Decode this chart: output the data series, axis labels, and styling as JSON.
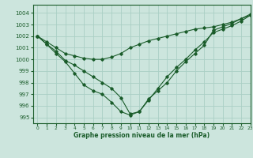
{
  "title": "Graphe pression niveau de la mer (hPa)",
  "xlabel": "Graphe pression niveau de la mer (hPa)",
  "xlim": [
    -0.5,
    23
  ],
  "ylim": [
    994.5,
    1004.7
  ],
  "yticks": [
    995,
    996,
    997,
    998,
    999,
    1000,
    1001,
    1002,
    1003,
    1004
  ],
  "xticks": [
    0,
    1,
    2,
    3,
    4,
    5,
    6,
    7,
    8,
    9,
    10,
    11,
    12,
    13,
    14,
    15,
    16,
    17,
    18,
    19,
    20,
    21,
    22,
    23
  ],
  "bg_color": "#cce5dd",
  "grid_color": "#aacfc5",
  "line_color": "#1a5c2a",
  "series1": [
    1002.0,
    1001.5,
    1001.0,
    1000.5,
    1000.3,
    1000.1,
    1000.0,
    1000.0,
    1000.2,
    1000.5,
    1001.0,
    1001.3,
    1001.6,
    1001.8,
    1002.0,
    1002.2,
    1002.4,
    1002.6,
    1002.7,
    1002.8,
    1003.0,
    1003.2,
    1003.5,
    1003.8
  ],
  "series2": [
    1002.0,
    1001.3,
    1000.5,
    999.8,
    998.8,
    997.8,
    997.3,
    997.0,
    996.3,
    995.5,
    995.2,
    995.5,
    996.6,
    997.3,
    998.0,
    999.0,
    999.8,
    1000.5,
    1001.2,
    1002.5,
    1002.8,
    1003.1,
    1003.5,
    1003.9
  ],
  "series3": [
    1002.0,
    1001.3,
    1000.7,
    999.9,
    999.5,
    999.0,
    998.5,
    998.0,
    997.5,
    996.7,
    995.3,
    995.5,
    996.5,
    997.5,
    998.5,
    999.3,
    1000.0,
    1000.8,
    1001.5,
    1002.3,
    1002.6,
    1002.9,
    1003.3,
    1003.8
  ]
}
